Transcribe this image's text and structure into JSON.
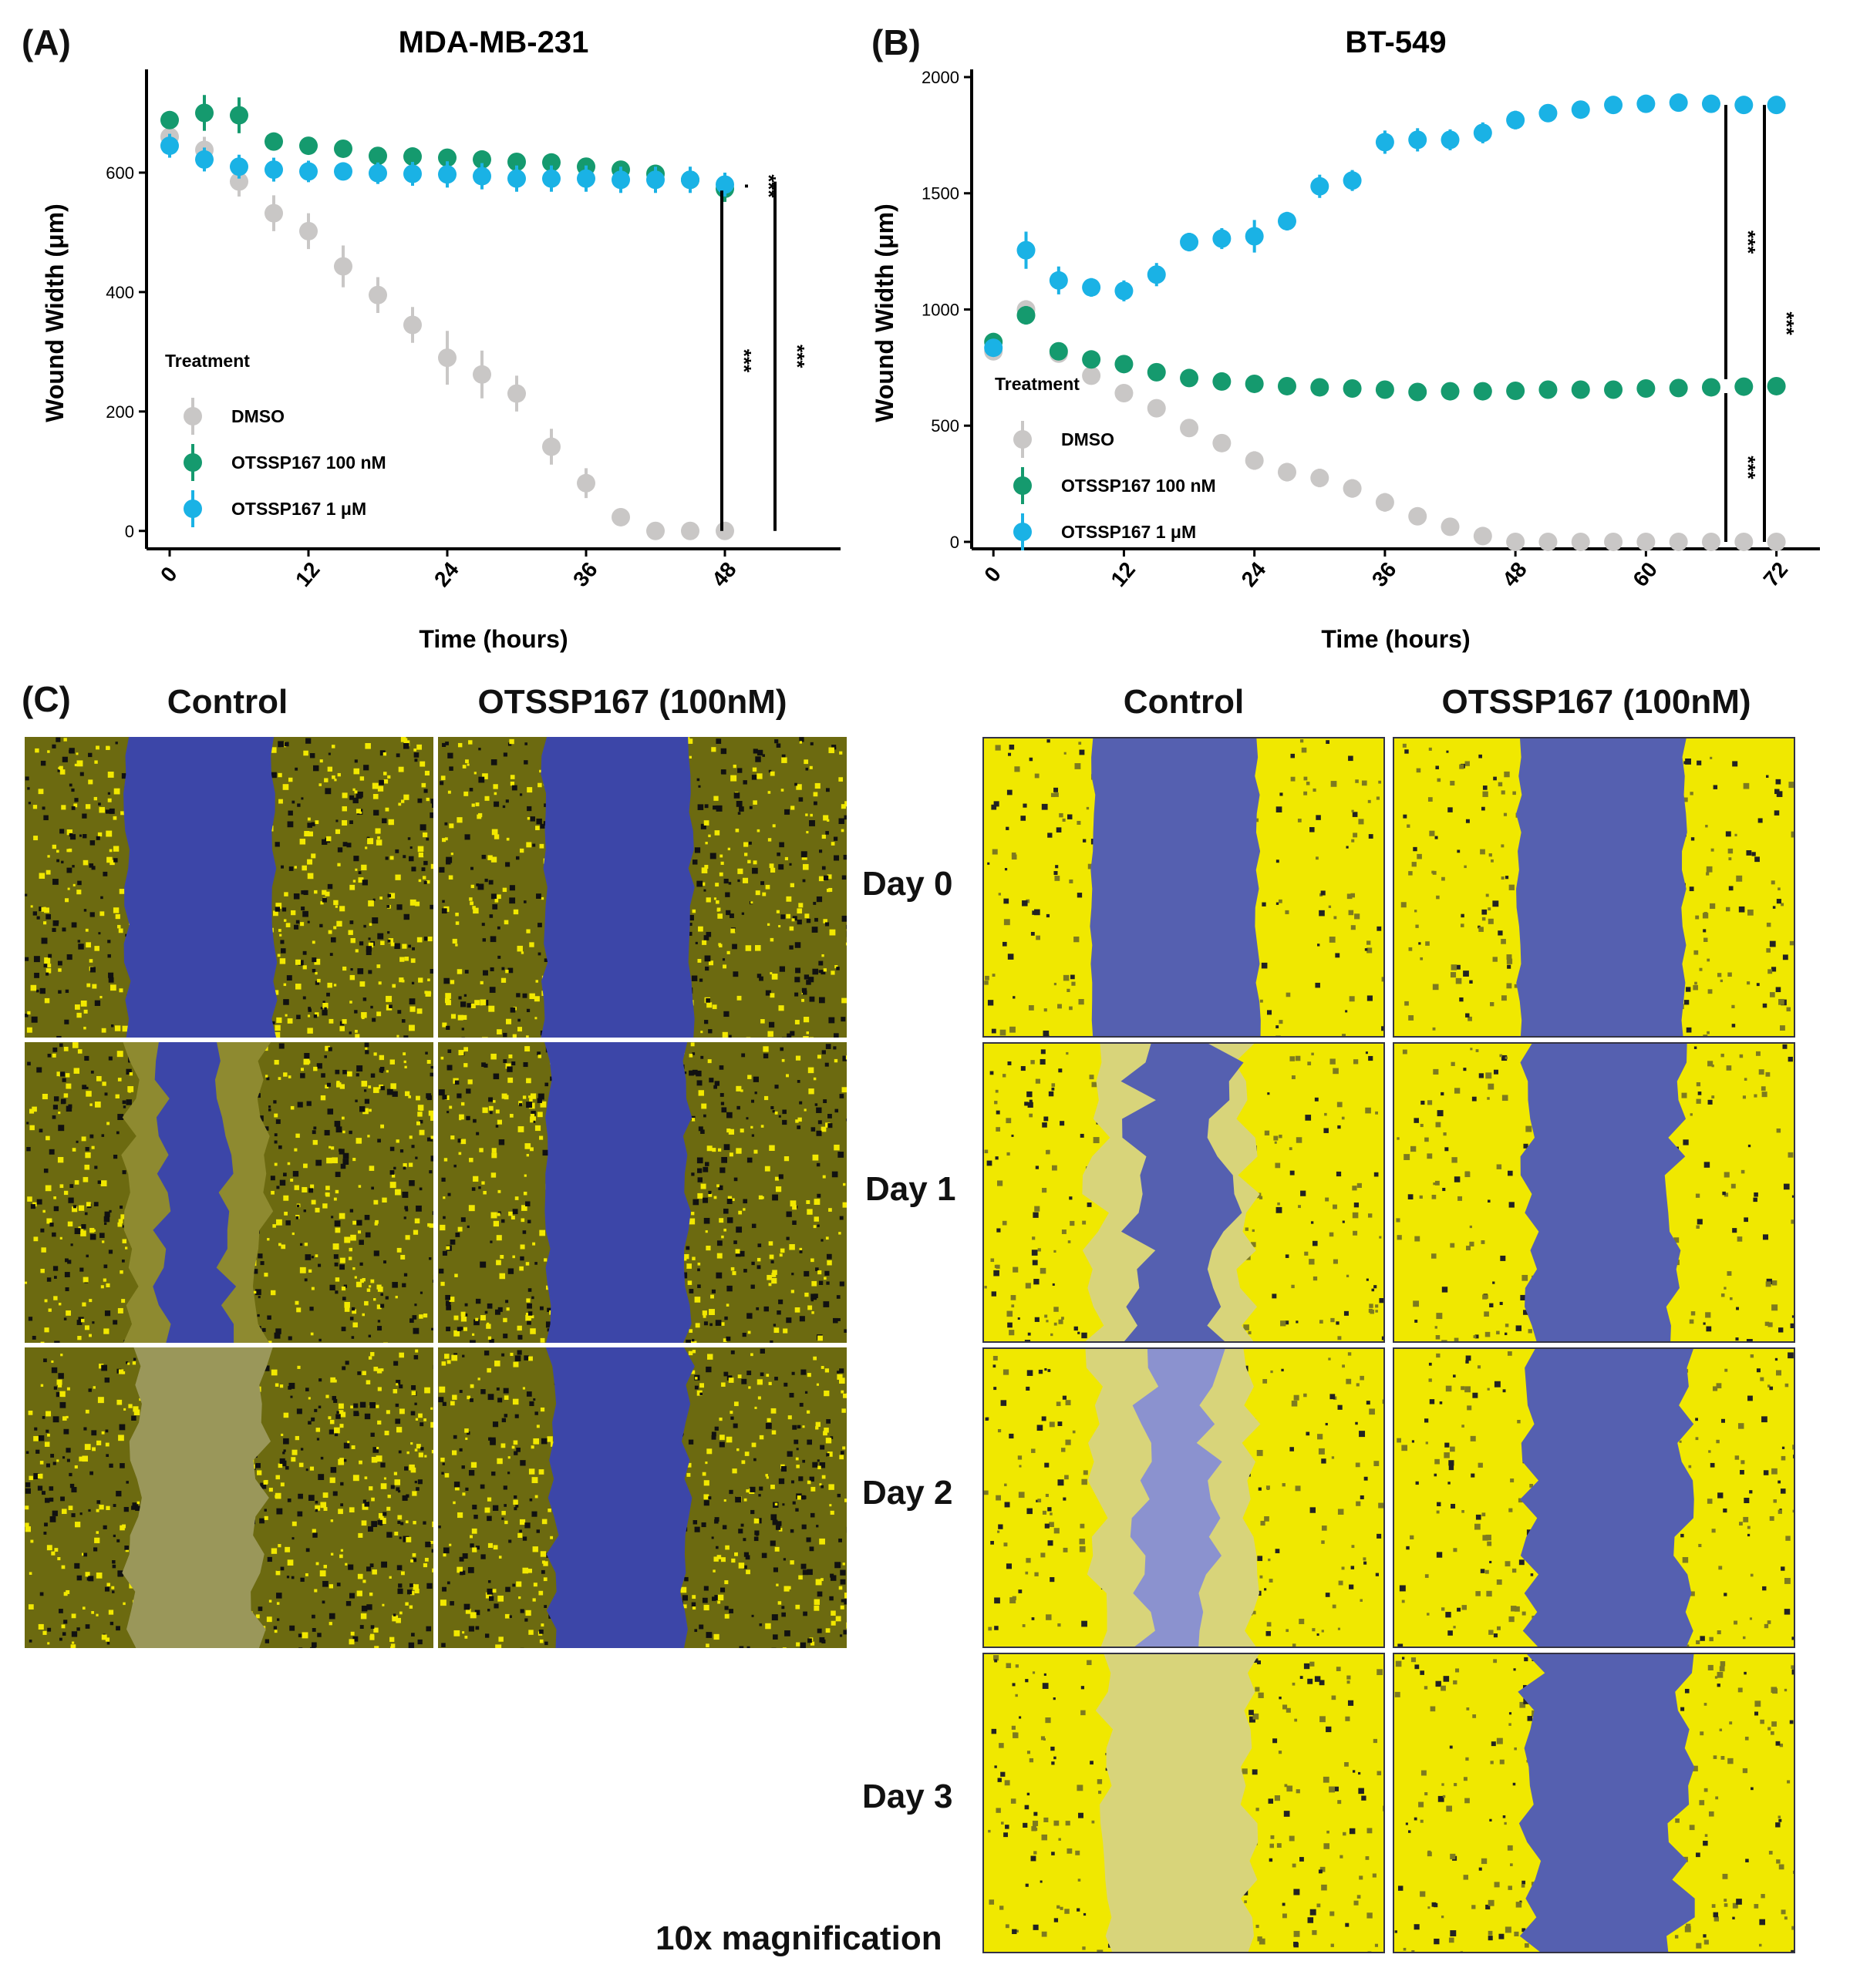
{
  "figure": {
    "panel_a_letter": "(A)",
    "panel_b_letter": "(B)",
    "panel_c_letter": "(C)"
  },
  "chart_data": [
    {
      "type": "scatter",
      "title": "MDA-MB-231",
      "xlabel": "Time (hours)",
      "ylabel": "Wound Width (μm)",
      "xlim": [
        -2,
        58
      ],
      "ylim": [
        -30,
        760
      ],
      "xticks": [
        0,
        12,
        24,
        36,
        48
      ],
      "yticks": [
        0,
        200,
        400,
        600
      ],
      "legend_title": "Treatment",
      "legend_position": "left-middle",
      "series": [
        {
          "name": "DMSO",
          "color": "#c9c7c6",
          "x": [
            0,
            3,
            6,
            9,
            12,
            15,
            18,
            21,
            24,
            27,
            30,
            33,
            36,
            39,
            42,
            45,
            48
          ],
          "y": [
            660,
            638,
            585,
            532,
            502,
            443,
            395,
            345,
            290,
            262,
            230,
            141,
            80,
            23,
            0,
            0,
            0
          ],
          "err": [
            18,
            22,
            25,
            30,
            30,
            35,
            30,
            30,
            45,
            40,
            30,
            30,
            25,
            15,
            0,
            0,
            0
          ]
        },
        {
          "name": "OTSSP167 100 nM",
          "color": "#159a6e",
          "x": [
            0,
            3,
            6,
            9,
            12,
            15,
            18,
            21,
            24,
            27,
            30,
            33,
            36,
            39,
            42,
            45,
            48
          ],
          "y": [
            688,
            700,
            696,
            652,
            645,
            640,
            628,
            627,
            625,
            622,
            618,
            617,
            610,
            605,
            598,
            588,
            573
          ],
          "err": [
            12,
            30,
            30,
            12,
            12,
            10,
            10,
            8,
            8,
            8,
            8,
            8,
            10,
            12,
            15,
            20,
            22
          ]
        },
        {
          "name": "OTSSP167 1 μM",
          "color": "#1ab2e5",
          "x": [
            0,
            3,
            6,
            9,
            12,
            15,
            18,
            21,
            24,
            27,
            30,
            33,
            36,
            39,
            42,
            45,
            48
          ],
          "y": [
            645,
            622,
            610,
            605,
            602,
            602,
            599,
            598,
            597,
            594,
            590,
            590,
            590,
            588,
            588,
            588,
            580
          ],
          "err": [
            20,
            20,
            20,
            20,
            18,
            15,
            18,
            20,
            22,
            22,
            22,
            22,
            22,
            22,
            22,
            22,
            20
          ]
        }
      ],
      "annotations": [
        "***",
        "***",
        "***"
      ]
    },
    {
      "type": "scatter",
      "title": "BT-549",
      "xlabel": "Time (hours)",
      "ylabel": "Wound Width (μm)",
      "xlim": [
        -2,
        76
      ],
      "ylim": [
        -30,
        2000
      ],
      "xticks": [
        0,
        12,
        24,
        36,
        48,
        60,
        72
      ],
      "yticks": [
        0,
        500,
        1000,
        1500,
        2000
      ],
      "legend_title": "Treatment",
      "legend_position": "left-bottom",
      "series": [
        {
          "name": "DMSO",
          "color": "#c9c7c6",
          "x": [
            0,
            3,
            6,
            9,
            12,
            15,
            18,
            21,
            24,
            27,
            30,
            33,
            36,
            39,
            42,
            45,
            48,
            51,
            54,
            57,
            60,
            63,
            66,
            69,
            72
          ],
          "y": [
            820,
            1000,
            810,
            715,
            640,
            575,
            490,
            425,
            350,
            300,
            275,
            230,
            170,
            110,
            65,
            25,
            0,
            0,
            0,
            0,
            0,
            0,
            0,
            0,
            0
          ],
          "err": [
            30,
            40,
            30,
            30,
            30,
            30,
            35,
            35,
            40,
            40,
            40,
            40,
            40,
            35,
            30,
            20,
            0,
            0,
            0,
            0,
            0,
            0,
            0,
            0,
            0
          ]
        },
        {
          "name": "OTSSP167 100 nM",
          "color": "#159a6e",
          "x": [
            0,
            3,
            6,
            9,
            12,
            15,
            18,
            21,
            24,
            27,
            30,
            33,
            36,
            39,
            42,
            45,
            48,
            51,
            54,
            57,
            60,
            63,
            66,
            69,
            72
          ],
          "y": [
            860,
            975,
            820,
            785,
            765,
            730,
            705,
            690,
            680,
            670,
            665,
            660,
            655,
            645,
            648,
            648,
            650,
            655,
            655,
            655,
            660,
            662,
            665,
            668,
            670
          ],
          "err": [
            20,
            40,
            25,
            20,
            15,
            15,
            12,
            12,
            12,
            12,
            12,
            12,
            12,
            12,
            12,
            12,
            12,
            12,
            12,
            12,
            12,
            12,
            12,
            12,
            12
          ]
        },
        {
          "name": "OTSSP167 1 μM",
          "color": "#1ab2e5",
          "x": [
            0,
            3,
            6,
            9,
            12,
            15,
            18,
            21,
            24,
            27,
            30,
            33,
            36,
            39,
            42,
            45,
            48,
            51,
            54,
            57,
            60,
            63,
            66,
            69,
            72
          ],
          "y": [
            835,
            1255,
            1125,
            1095,
            1080,
            1150,
            1290,
            1305,
            1315,
            1380,
            1530,
            1555,
            1720,
            1730,
            1730,
            1760,
            1815,
            1845,
            1860,
            1880,
            1885,
            1890,
            1885,
            1880,
            1880
          ],
          "err": [
            30,
            80,
            60,
            40,
            45,
            50,
            40,
            45,
            70,
            40,
            50,
            45,
            50,
            50,
            45,
            45,
            40,
            30,
            25,
            25,
            25,
            25,
            25,
            25,
            20
          ]
        }
      ],
      "annotations": [
        "***",
        "***",
        "***"
      ]
    }
  ],
  "panel_c": {
    "left_headers": [
      "Control",
      "OTSSP167 (100nM)"
    ],
    "right_headers": [
      "Control",
      "OTSSP167 (100nM)"
    ],
    "day_labels": [
      "Day 0",
      "Day 1",
      "Day 2",
      "Day 3"
    ],
    "magnification": "10x magnification",
    "colors": {
      "cells": "#f0e800",
      "wound": "#5560b0",
      "closed": "#d8d47a",
      "dark_wound": "#3c46a8"
    }
  }
}
